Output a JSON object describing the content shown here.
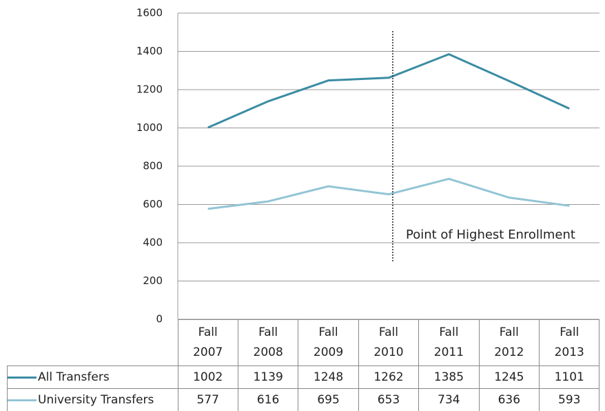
{
  "chart_data": {
    "type": "line",
    "categories": [
      "Fall 2007",
      "Fall 2008",
      "Fall 2009",
      "Fall 2010",
      "Fall 2011",
      "Fall 2012",
      "Fall 2013"
    ],
    "series": [
      {
        "name": "All Transfers",
        "color": "#3a8ca3",
        "values": [
          1002,
          1139,
          1248,
          1262,
          1385,
          1245,
          1101
        ]
      },
      {
        "name": "University Transfers",
        "color": "#92c5d5",
        "values": [
          577,
          616,
          695,
          653,
          734,
          636,
          593
        ]
      }
    ],
    "ylim": [
      0,
      1600
    ],
    "yticks": [
      0,
      200,
      400,
      600,
      800,
      1000,
      1200,
      1400,
      1600
    ],
    "grid": true,
    "annotation": "Point of Highest Enrollment"
  }
}
